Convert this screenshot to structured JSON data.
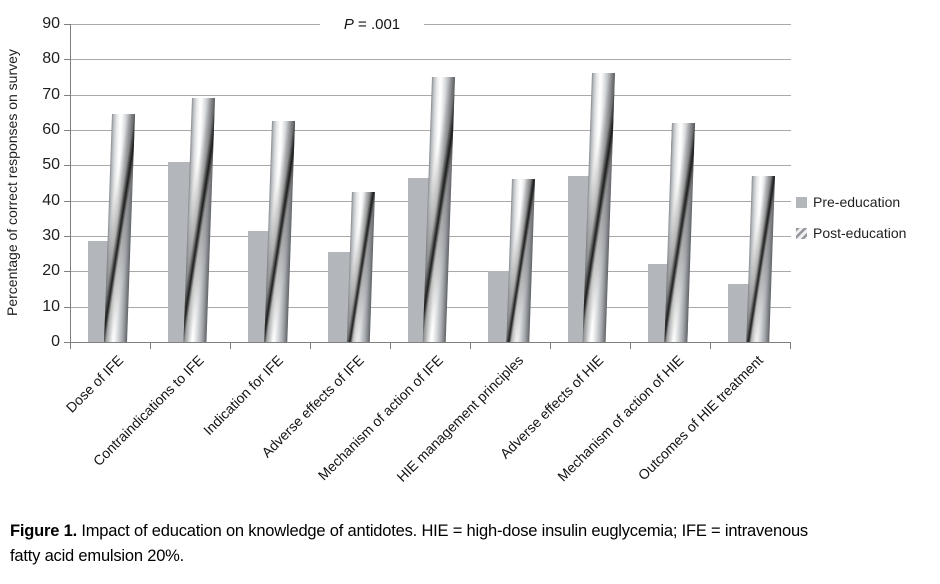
{
  "chart_data": {
    "type": "bar",
    "title": "",
    "ylabel": "Percentage of correct responses on survey",
    "xlabel": "",
    "annotation": "P = .001",
    "ylim": [
      0,
      90
    ],
    "ytick_interval": 10,
    "yticks": [
      0,
      10,
      20,
      30,
      40,
      50,
      60,
      70,
      80,
      90
    ],
    "grid": true,
    "legend_position": "right",
    "categories": [
      "Dose of IFE",
      "Contraindications to IFE",
      "Indication for IFE",
      "Adverse effects of IFE",
      "Mechanism of action of IFE",
      "HIE management principles",
      "Adverse effects of HIE",
      "Mechanism of action of HIE",
      "Outcomes of HIE treatment"
    ],
    "series": [
      {
        "name": "Pre-education",
        "style": "solid-gray",
        "values": [
          28.5,
          51,
          31.5,
          25.5,
          46.5,
          20,
          47,
          22,
          16.5
        ]
      },
      {
        "name": "Post-education",
        "style": "gradient-diagonal-slash",
        "values": [
          64.5,
          69,
          62.5,
          42.5,
          75,
          46,
          76,
          62,
          47
        ]
      }
    ]
  },
  "annotation": {
    "symbol": "P",
    "rest": "= .001"
  },
  "caption": {
    "label": "Figure 1.",
    "line1": "Impact of education on knowledge of antidotes. HIE = high-dose insulin euglycemia; IFE = intravenous",
    "line2": "fatty acid emulsion 20%."
  },
  "colors": {
    "pre_bar": "#b3b6ba",
    "post_bar_highlight": "#ffffff",
    "post_bar_slash": "#1b1b1b",
    "gridline": "#a9a9a9",
    "axis": "#7f7f7f",
    "text": "#1a1a1a"
  }
}
